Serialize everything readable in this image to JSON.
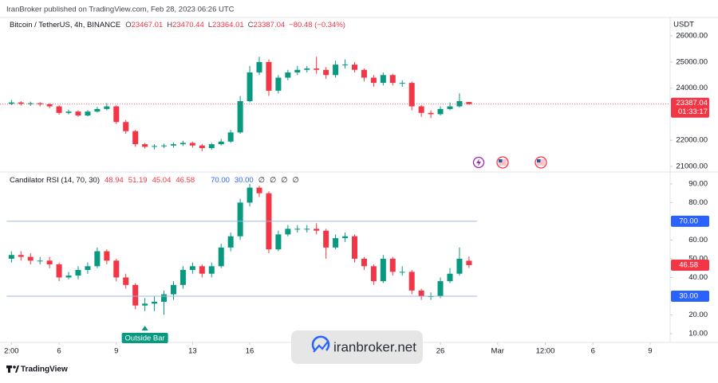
{
  "header": "IranBroker published on TradingView.com, Feb 28, 2023 06:26 UTC",
  "footer": "TradingView",
  "watermark": "iranbroker.net",
  "chart_data": [
    {
      "type": "candlestick",
      "title": "Bitcoin / TetherUS, 4h, BINANCE",
      "ohlc": [
        [
          "O",
          "23467.01"
        ],
        [
          "H",
          "23470.44"
        ],
        [
          "L",
          "23364.01"
        ],
        [
          "C",
          "23387.04"
        ]
      ],
      "change": "−80.48 (−0.34%)",
      "currency": "USDT",
      "last_label": "23387.04",
      "countdown": "01:33:17",
      "up_color": "#089981",
      "down_color": "#f23645",
      "xlim": [
        2.9,
        38.05
      ],
      "ylim": [
        20785,
        26705
      ],
      "yticks": [
        {
          "value": 21000,
          "label": "21000.00"
        },
        {
          "value": 22000,
          "label": "22000.00"
        },
        {
          "value": 24000,
          "label": "24000.00"
        },
        {
          "value": 25000,
          "label": "25000.00"
        },
        {
          "value": 26000,
          "label": "26000.00"
        }
      ],
      "x": [
        3.5,
        4,
        4.5,
        5,
        5.5,
        6,
        6.5,
        7,
        7.5,
        8,
        8.5,
        9,
        9.5,
        10,
        10.5,
        11,
        11.5,
        12,
        12.5,
        13,
        13.5,
        14,
        14.5,
        15,
        15.5,
        16,
        16.5,
        17,
        17.5,
        18,
        18.5,
        19,
        19.5,
        20,
        20.5,
        21,
        21.5,
        22,
        22.5,
        23,
        23.5,
        24,
        24.5,
        25,
        25.5,
        26,
        26.5,
        27,
        27.5
      ],
      "open": [
        23400,
        23450,
        23400,
        23420,
        23380,
        23300,
        23050,
        23100,
        22950,
        23100,
        23200,
        23300,
        22700,
        22350,
        21850,
        21750,
        21780,
        21800,
        21850,
        21900,
        21800,
        21700,
        21850,
        21950,
        22300,
        23500,
        24600,
        25000,
        23900,
        24400,
        24600,
        24700,
        24750,
        24700,
        24500,
        24900,
        24900,
        24700,
        24400,
        24200,
        24500,
        24200,
        24200,
        23300,
        23050,
        23000,
        23200,
        23300,
        23467.01
      ],
      "high": [
        23550,
        23500,
        23480,
        23460,
        23420,
        23340,
        23180,
        23150,
        23160,
        23280,
        23420,
        23340,
        22780,
        22400,
        21900,
        21850,
        21870,
        21920,
        21980,
        21950,
        21860,
        21900,
        22050,
        22400,
        23700,
        24850,
        25200,
        25100,
        24500,
        24700,
        24850,
        24850,
        25200,
        24800,
        25050,
        25100,
        25000,
        24750,
        24500,
        24600,
        24550,
        24300,
        24250,
        23350,
        23150,
        23300,
        23450,
        23800,
        23470.44
      ],
      "low": [
        23350,
        23330,
        23320,
        23300,
        23220,
        22980,
        22990,
        22900,
        22920,
        23060,
        23150,
        22620,
        22250,
        21750,
        21680,
        21650,
        21700,
        21720,
        21780,
        21720,
        21580,
        21640,
        21800,
        21900,
        22250,
        23450,
        24500,
        23700,
        23800,
        24300,
        24500,
        24600,
        24550,
        24350,
        24400,
        24750,
        24600,
        24250,
        24050,
        24100,
        24100,
        24050,
        23150,
        22900,
        22850,
        22950,
        23150,
        23250,
        23364.01
      ],
      "close": [
        23450,
        23400,
        23420,
        23380,
        23300,
        23050,
        23100,
        22950,
        23100,
        23200,
        23300,
        22700,
        22350,
        21850,
        21750,
        21780,
        21800,
        21850,
        21900,
        21800,
        21700,
        21850,
        21950,
        22300,
        23500,
        24600,
        25000,
        23900,
        24400,
        24600,
        24700,
        24750,
        24700,
        24500,
        24900,
        24900,
        24700,
        24400,
        24200,
        24500,
        24200,
        24200,
        23300,
        23050,
        23000,
        23200,
        23300,
        23500,
        23387.04
      ]
    },
    {
      "type": "candlestick",
      "title": "Candilator RSI (14, 70, 30)",
      "legend_values": [
        "48.94",
        "51.19",
        "45.04",
        "46.58"
      ],
      "level_values": [
        "70.00",
        "30.00"
      ],
      "extra": [
        "∅",
        "∅",
        "∅",
        "∅"
      ],
      "last_label": "46.58",
      "up_color": "#089981",
      "down_color": "#f23645",
      "level_color": "#2962ff",
      "xlim": [
        2.9,
        38.05
      ],
      "xticks": [
        {
          "value": 3.5,
          "label": "2:00"
        },
        6,
        9,
        13,
        16,
        26,
        {
          "value": 29,
          "label": "Mar"
        },
        {
          "value": 31.5,
          "label": "12:00"
        },
        {
          "value": 34,
          "label": "6"
        },
        {
          "value": 37,
          "label": "9"
        }
      ],
      "ylim": [
        5.3,
        95.5
      ],
      "yticks": [
        {
          "value": 10,
          "label": "10.00"
        },
        {
          "value": 20,
          "label": "20.00"
        },
        {
          "value": 40,
          "label": "40.00"
        },
        {
          "value": 50,
          "label": "50.00"
        },
        {
          "value": 60,
          "label": "60.00"
        },
        {
          "value": 80,
          "label": "80.00"
        },
        {
          "value": 90,
          "label": "90.00"
        }
      ],
      "levels": [
        {
          "value": 70,
          "label": "70.00"
        },
        {
          "value": 30,
          "label": "30.00"
        }
      ],
      "annotation": {
        "text": "Outside Bar",
        "x": 10.5
      },
      "x": [
        3.5,
        4,
        4.5,
        5,
        5.5,
        6,
        6.5,
        7,
        7.5,
        8,
        8.5,
        9,
        9.5,
        10,
        10.5,
        11,
        11.5,
        12,
        12.5,
        13,
        13.5,
        14,
        14.5,
        15,
        15.5,
        16,
        16.5,
        17,
        17.5,
        18,
        18.5,
        19,
        19.5,
        20,
        20.5,
        21,
        21.5,
        22,
        22.5,
        23,
        23.5,
        24,
        24.5,
        25,
        25.5,
        26,
        26.5,
        27,
        27.5
      ],
      "open": [
        50,
        52,
        51,
        49,
        49,
        47,
        40,
        41,
        44,
        46,
        54,
        49,
        40,
        36,
        25,
        26,
        27,
        31,
        36,
        44,
        46,
        42,
        46,
        56,
        62,
        80,
        88,
        85,
        55,
        63,
        66,
        66,
        66,
        65,
        56,
        61,
        62,
        50,
        46,
        38,
        50,
        43,
        43,
        33,
        30,
        30,
        38,
        42,
        48.94
      ],
      "high": [
        54,
        54,
        53,
        51,
        51,
        48,
        43,
        46,
        48,
        56,
        55,
        50,
        42,
        37,
        29,
        30,
        33,
        38,
        46,
        48,
        47,
        48,
        58,
        64,
        82,
        90,
        89,
        86,
        65,
        68,
        68,
        68,
        69,
        66,
        63,
        64,
        63,
        51,
        47,
        52,
        51,
        46,
        44,
        34,
        32,
        40,
        45,
        56,
        51.19
      ],
      "low": [
        48,
        49,
        47,
        47,
        45,
        38,
        39,
        39,
        42,
        45,
        47,
        38,
        34,
        23,
        22,
        22,
        20,
        28,
        34,
        42,
        40,
        40,
        45,
        54,
        60,
        78,
        83,
        53,
        54,
        62,
        64,
        64,
        63,
        50,
        55,
        59,
        48,
        44,
        36,
        37,
        41,
        41,
        31,
        28,
        28,
        29,
        37,
        41,
        45.04
      ],
      "close": [
        52,
        51,
        49,
        49,
        47,
        40,
        41,
        44,
        46,
        54,
        49,
        40,
        36,
        25,
        26,
        27,
        31,
        36,
        44,
        46,
        42,
        46,
        56,
        62,
        80,
        88,
        85,
        55,
        63,
        66,
        66,
        66,
        65,
        56,
        61,
        62,
        50,
        46,
        38,
        50,
        43,
        43,
        33,
        30,
        30,
        38,
        42,
        50,
        46.58
      ]
    }
  ]
}
